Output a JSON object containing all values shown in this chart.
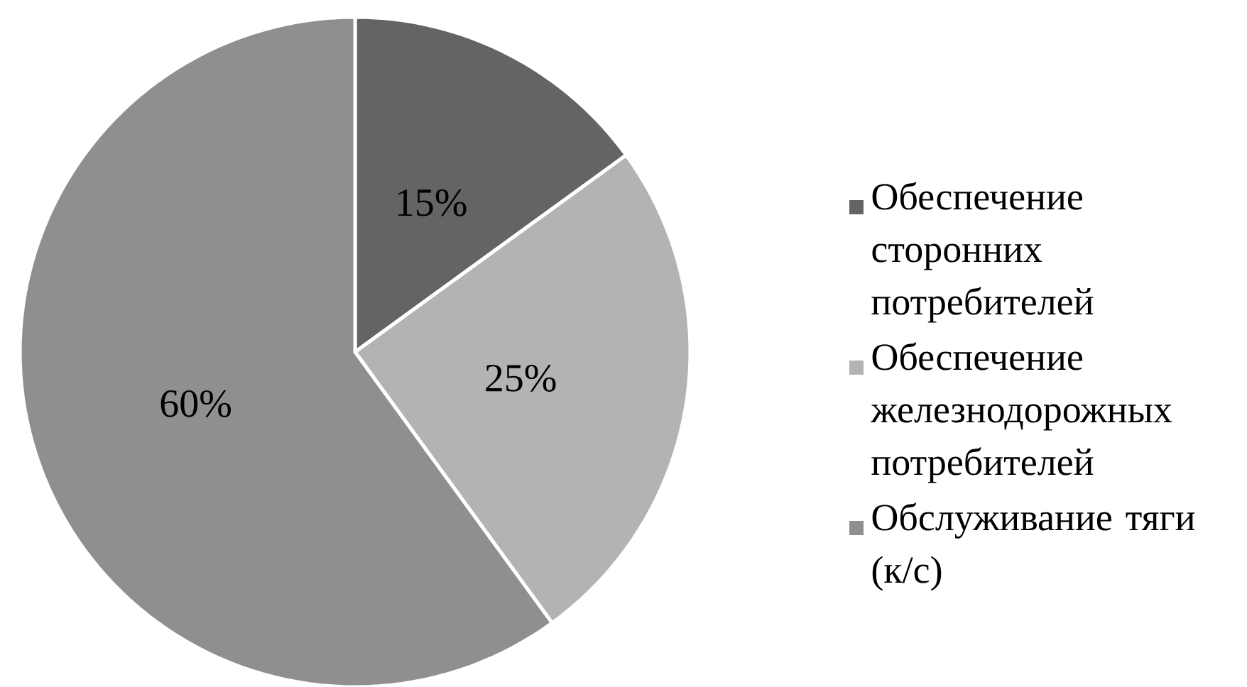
{
  "chart_data": {
    "type": "pie",
    "categories": [
      "Обеспечение сторонних потребителей",
      "Обеспечение железнодорожных потребителей",
      "Обслуживание тяги (к/с)"
    ],
    "values": [
      15,
      25,
      60
    ],
    "value_labels": [
      "15%",
      "25%",
      "60%"
    ],
    "colors": [
      "#646464",
      "#b3b3b3",
      "#8f8f8f"
    ],
    "legend": "right"
  }
}
